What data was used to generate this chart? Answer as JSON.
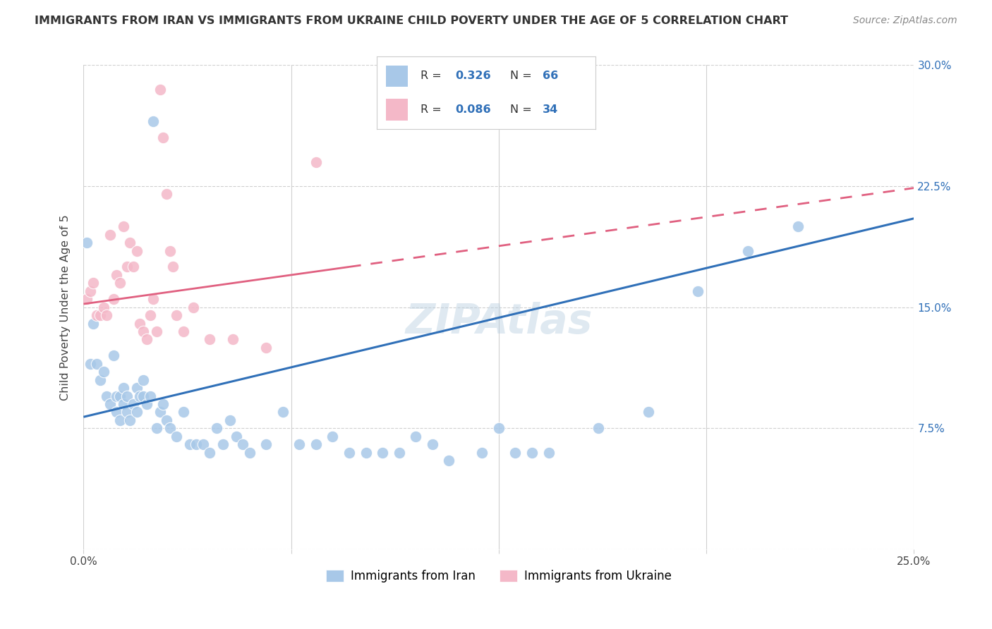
{
  "title": "IMMIGRANTS FROM IRAN VS IMMIGRANTS FROM UKRAINE CHILD POVERTY UNDER THE AGE OF 5 CORRELATION CHART",
  "source": "Source: ZipAtlas.com",
  "ylabel": "Child Poverty Under the Age of 5",
  "xlabel_iran": "Immigrants from Iran",
  "xlabel_ukraine": "Immigrants from Ukraine",
  "xmin": 0.0,
  "xmax": 0.25,
  "ymin": 0.0,
  "ymax": 0.3,
  "yticks": [
    0.0,
    0.075,
    0.15,
    0.225,
    0.3
  ],
  "ytick_labels": [
    "",
    "7.5%",
    "15.0%",
    "22.5%",
    "30.0%"
  ],
  "xticks": [
    0.0,
    0.0625,
    0.125,
    0.1875,
    0.25
  ],
  "xtick_labels": [
    "0.0%",
    "",
    "",
    "",
    "25.0%"
  ],
  "R_iran": 0.326,
  "N_iran": 66,
  "R_ukraine": 0.086,
  "N_ukraine": 34,
  "color_iran": "#a8c8e8",
  "color_ukraine": "#f4b8c8",
  "line_iran": "#3070b8",
  "line_ukraine": "#e06080",
  "background": "#ffffff",
  "grid_color": "#d0d0d0",
  "iran_line_y0": 0.082,
  "iran_line_y1": 0.205,
  "ukraine_line_y0": 0.152,
  "ukraine_line_y1": 0.175,
  "ukraine_line_xend": 0.08,
  "iran_x": [
    0.001,
    0.002,
    0.003,
    0.004,
    0.005,
    0.006,
    0.007,
    0.008,
    0.009,
    0.01,
    0.01,
    0.011,
    0.011,
    0.012,
    0.012,
    0.013,
    0.013,
    0.014,
    0.015,
    0.016,
    0.016,
    0.017,
    0.018,
    0.018,
    0.019,
    0.02,
    0.021,
    0.022,
    0.023,
    0.024,
    0.025,
    0.026,
    0.028,
    0.03,
    0.032,
    0.034,
    0.036,
    0.038,
    0.04,
    0.042,
    0.044,
    0.046,
    0.048,
    0.05,
    0.055,
    0.06,
    0.065,
    0.07,
    0.075,
    0.08,
    0.085,
    0.09,
    0.095,
    0.1,
    0.105,
    0.11,
    0.12,
    0.125,
    0.13,
    0.135,
    0.14,
    0.155,
    0.17,
    0.185,
    0.2,
    0.215
  ],
  "iran_y": [
    0.19,
    0.115,
    0.14,
    0.115,
    0.105,
    0.11,
    0.095,
    0.09,
    0.12,
    0.085,
    0.095,
    0.08,
    0.095,
    0.09,
    0.1,
    0.085,
    0.095,
    0.08,
    0.09,
    0.085,
    0.1,
    0.095,
    0.095,
    0.105,
    0.09,
    0.095,
    0.265,
    0.075,
    0.085,
    0.09,
    0.08,
    0.075,
    0.07,
    0.085,
    0.065,
    0.065,
    0.065,
    0.06,
    0.075,
    0.065,
    0.08,
    0.07,
    0.065,
    0.06,
    0.065,
    0.085,
    0.065,
    0.065,
    0.07,
    0.06,
    0.06,
    0.06,
    0.06,
    0.07,
    0.065,
    0.055,
    0.06,
    0.075,
    0.06,
    0.06,
    0.06,
    0.075,
    0.085,
    0.16,
    0.185,
    0.2
  ],
  "ukraine_x": [
    0.001,
    0.002,
    0.003,
    0.004,
    0.005,
    0.006,
    0.007,
    0.008,
    0.009,
    0.01,
    0.011,
    0.012,
    0.013,
    0.014,
    0.015,
    0.016,
    0.017,
    0.018,
    0.019,
    0.02,
    0.021,
    0.022,
    0.023,
    0.024,
    0.025,
    0.026,
    0.027,
    0.028,
    0.03,
    0.033,
    0.038,
    0.045,
    0.055,
    0.07
  ],
  "ukraine_y": [
    0.155,
    0.16,
    0.165,
    0.145,
    0.145,
    0.15,
    0.145,
    0.195,
    0.155,
    0.17,
    0.165,
    0.2,
    0.175,
    0.19,
    0.175,
    0.185,
    0.14,
    0.135,
    0.13,
    0.145,
    0.155,
    0.135,
    0.285,
    0.255,
    0.22,
    0.185,
    0.175,
    0.145,
    0.135,
    0.15,
    0.13,
    0.13,
    0.125,
    0.24
  ]
}
